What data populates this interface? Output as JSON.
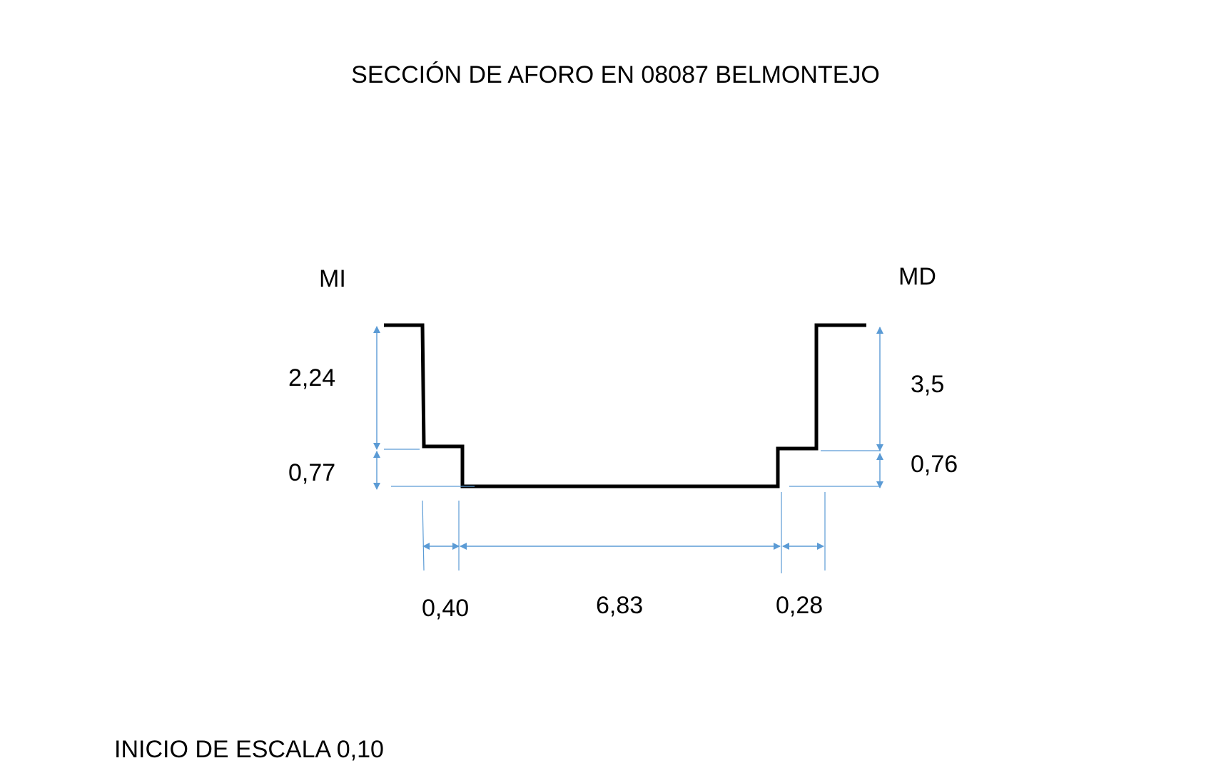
{
  "title": "SECCIÓN DE AFORO EN 08087 BELMONTEJO",
  "bank_labels": {
    "left": "MI",
    "right": "MD"
  },
  "dimensions": {
    "left_upper_height": "2,24",
    "left_lower_height": "0,77",
    "right_upper_height": "3,5",
    "right_lower_height": "0,76",
    "left_step_width": "0,40",
    "bottom_width": "6,83",
    "right_step_width": "0,28"
  },
  "footer": "INICIO DE ESCALA 0,10",
  "colors": {
    "profile": "#000000",
    "dimension_lines": "#5b9bd5",
    "extension_lines": "#5b9bd5"
  }
}
